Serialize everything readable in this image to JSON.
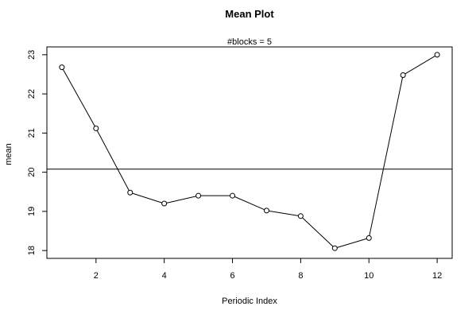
{
  "chart_data": {
    "type": "line",
    "title": "Mean Plot",
    "subtitle": "#blocks =  5",
    "xlabel": "Periodic Index",
    "ylabel": "mean",
    "x": [
      1,
      2,
      3,
      4,
      5,
      6,
      7,
      8,
      9,
      10,
      11,
      12
    ],
    "series": [
      {
        "values": [
          22.68,
          21.12,
          19.48,
          19.2,
          19.4,
          19.4,
          19.02,
          18.88,
          18.06,
          18.32,
          22.48,
          23.0
        ]
      }
    ],
    "reference_line": 20.08,
    "xlim": [
      0.56,
      12.44
    ],
    "ylim": [
      17.8,
      23.2
    ],
    "x_ticks": [
      2,
      4,
      6,
      8,
      10,
      12
    ],
    "y_ticks": [
      18,
      19,
      20,
      21,
      22,
      23
    ],
    "marker": "open-circle",
    "grid": false,
    "legend": "none",
    "colors": {
      "line": "#000000",
      "reference": "#000000",
      "background": "#ffffff"
    }
  }
}
